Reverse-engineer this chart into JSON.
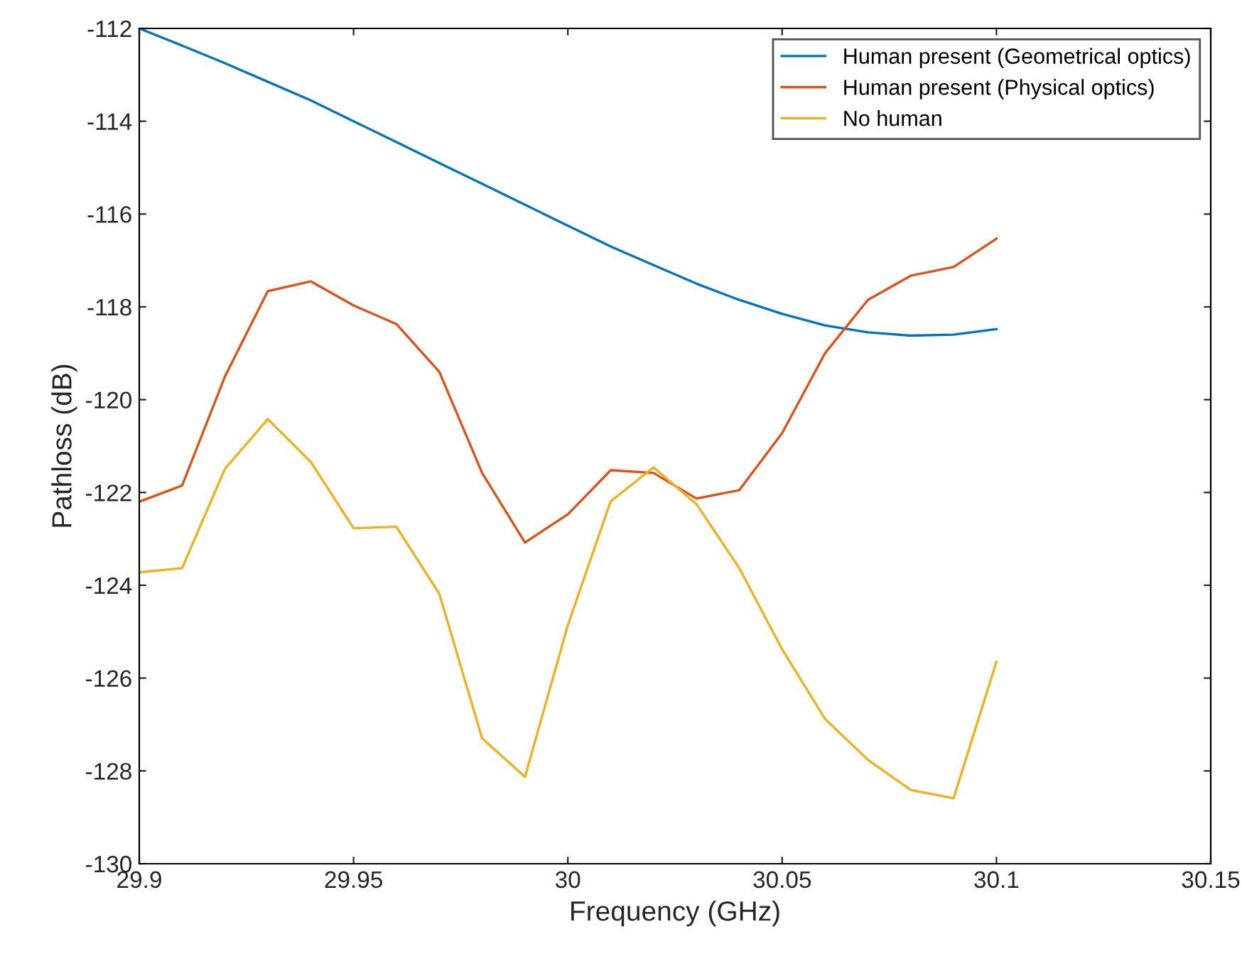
{
  "chart_data": {
    "type": "line",
    "xlabel": "Frequency (GHz)",
    "ylabel": "Pathloss (dB)",
    "x": [
      29.9,
      29.91,
      29.92,
      29.93,
      29.94,
      29.95,
      29.96,
      29.97,
      29.98,
      29.99,
      30.0,
      30.01,
      30.02,
      30.03,
      30.04,
      30.05,
      30.06,
      30.07,
      30.08,
      30.09,
      30.1
    ],
    "series": [
      {
        "name": "Human present (Geometrical optics)",
        "color": "#0072bd",
        "values": [
          -112.0,
          -112.37,
          -112.75,
          -113.15,
          -113.55,
          -114.0,
          -114.45,
          -114.9,
          -115.35,
          -115.8,
          -116.25,
          -116.7,
          -117.1,
          -117.5,
          -117.85,
          -118.15,
          -118.4,
          -118.55,
          -118.62,
          -118.6,
          -118.48
        ]
      },
      {
        "name": "Human present (Physical optics)",
        "color": "#d95319",
        "values": [
          -122.2,
          -121.85,
          -119.5,
          -117.66,
          -117.45,
          -117.97,
          -118.37,
          -119.4,
          -121.58,
          -123.08,
          -122.47,
          -121.52,
          -121.58,
          -122.13,
          -121.95,
          -120.72,
          -119.0,
          -117.85,
          -117.33,
          -117.14,
          -116.53
        ]
      },
      {
        "name": "No human",
        "color": "#edb120",
        "values": [
          -123.72,
          -123.63,
          -121.49,
          -120.42,
          -121.34,
          -122.77,
          -122.74,
          -124.18,
          -127.3,
          -128.13,
          -124.86,
          -122.19,
          -121.46,
          -122.25,
          -123.63,
          -125.38,
          -126.88,
          -127.76,
          -128.41,
          -128.59,
          -125.65
        ]
      }
    ],
    "xlim": [
      29.9,
      30.15
    ],
    "ylim": [
      -130,
      -112
    ],
    "xticks": [
      29.9,
      29.95,
      30,
      30.05,
      30.1,
      30.15
    ],
    "yticks": [
      -130,
      -128,
      -126,
      -124,
      -122,
      -120,
      -118,
      -116,
      -114,
      -112
    ],
    "grid": false,
    "legend": "top right",
    "marker": "none",
    "line_style": "solid"
  }
}
